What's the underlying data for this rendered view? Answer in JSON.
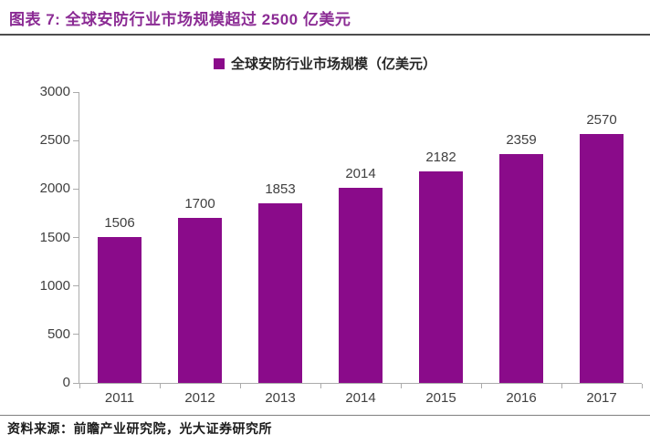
{
  "header": {
    "title": "图表 7: 全球安防行业市场规模超过 2500 亿美元"
  },
  "legend": {
    "label": "全球安防行业市场规模（亿美元）"
  },
  "footer": {
    "source": "资料来源：前瞻产业研究院，光大证券研究所"
  },
  "colors": {
    "title": "#8B2B94",
    "bar": "#8A0B8A",
    "axis": "#ABABAB",
    "tick_text": "#404040",
    "legend_text": "#262626",
    "title_rule": "#4D4D4D",
    "footer_rule": "#808080",
    "source_text": "#1A1A1A"
  },
  "chart_data": {
    "type": "bar",
    "title": "全球安防行业市场规模超过 2500 亿美元",
    "categories": [
      "2011",
      "2012",
      "2013",
      "2014",
      "2015",
      "2016",
      "2017"
    ],
    "values": [
      1506,
      1700,
      1853,
      2014,
      2182,
      2359,
      2570
    ],
    "xlabel": "",
    "ylabel": "",
    "ylim": [
      0,
      3000
    ],
    "yticks": [
      0,
      500,
      1000,
      1500,
      2000,
      2500,
      3000
    ],
    "legend": [
      "全球安防行业市场规模（亿美元）"
    ],
    "legend_position": "top-center",
    "grid": false,
    "data_labels": true,
    "bar_color": "#8A0B8A"
  }
}
